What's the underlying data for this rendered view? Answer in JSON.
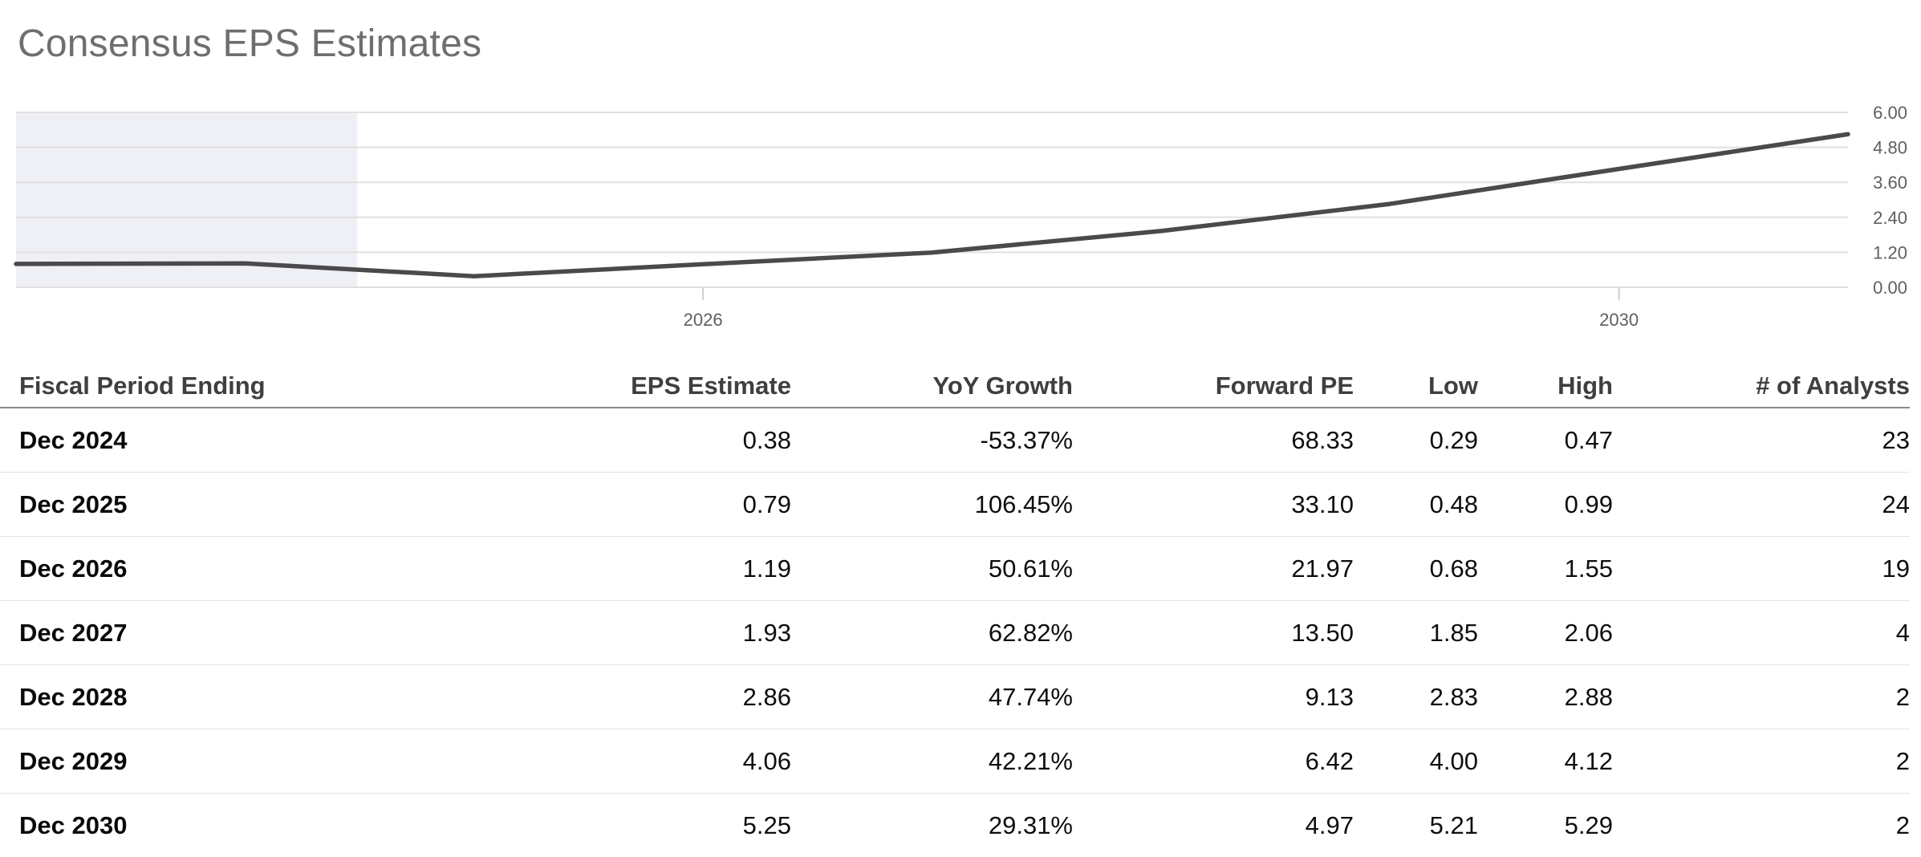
{
  "page": {
    "title": "Consensus EPS Estimates"
  },
  "chart_data": {
    "type": "line",
    "title": "Consensus EPS Estimates",
    "xlabel": "",
    "ylabel": "",
    "ylim": [
      0,
      6
    ],
    "y_ticks": [
      "0.00",
      "1.20",
      "2.40",
      "3.60",
      "4.80",
      "6.00"
    ],
    "x_range_years": [
      2023,
      2031
    ],
    "x_ticks": [
      {
        "label": "2026",
        "year": 2026
      },
      {
        "label": "2030",
        "year": 2030
      }
    ],
    "grid": true,
    "legend": "none",
    "line_color": "#4a4a4c",
    "grid_color": "#e0e0e0",
    "axis_text_color": "#5f5f5f",
    "highlight_region": {
      "start_year": 2023.0,
      "end_year": 2024.49,
      "color": "#eef0f5"
    },
    "series": [
      {
        "name": "Consensus EPS",
        "points": [
          {
            "period": "Dec 2022",
            "value": 0.8
          },
          {
            "period": "Dec 2023",
            "value": 0.82
          },
          {
            "period": "Dec 2024",
            "value": 0.38
          },
          {
            "period": "Dec 2025",
            "value": 0.79
          },
          {
            "period": "Dec 2026",
            "value": 1.19
          },
          {
            "period": "Dec 2027",
            "value": 1.93
          },
          {
            "period": "Dec 2028",
            "value": 2.86
          },
          {
            "period": "Dec 2029",
            "value": 4.06
          },
          {
            "period": "Dec 2030",
            "value": 5.25
          }
        ]
      }
    ]
  },
  "table": {
    "columns": [
      "Fiscal Period Ending",
      "EPS Estimate",
      "YoY Growth",
      "Forward PE",
      "Low",
      "High",
      "# of Analysts"
    ],
    "rows": [
      [
        "Dec 2024",
        "0.38",
        "-53.37%",
        "68.33",
        "0.29",
        "0.47",
        "23"
      ],
      [
        "Dec 2025",
        "0.79",
        "106.45%",
        "33.10",
        "0.48",
        "0.99",
        "24"
      ],
      [
        "Dec 2026",
        "1.19",
        "50.61%",
        "21.97",
        "0.68",
        "1.55",
        "19"
      ],
      [
        "Dec 2027",
        "1.93",
        "62.82%",
        "13.50",
        "1.85",
        "2.06",
        "4"
      ],
      [
        "Dec 2028",
        "2.86",
        "47.74%",
        "9.13",
        "2.83",
        "2.88",
        "2"
      ],
      [
        "Dec 2029",
        "4.06",
        "42.21%",
        "6.42",
        "4.00",
        "4.12",
        "2"
      ],
      [
        "Dec 2030",
        "5.25",
        "29.31%",
        "4.97",
        "5.21",
        "5.29",
        "2"
      ]
    ]
  }
}
